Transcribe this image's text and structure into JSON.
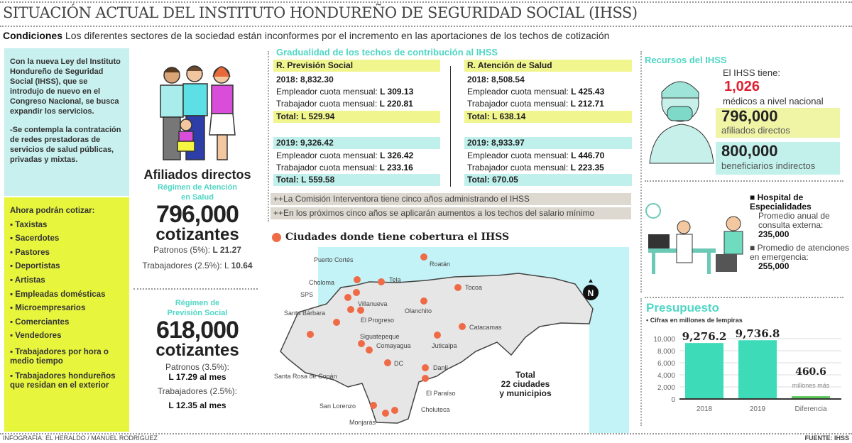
{
  "header": {
    "title": "SITUACIÓN ACTUAL DEL INSTITUTO HONDUREÑO DE SEGURIDAD SOCIAL (IHSS)",
    "cond_label": "Condiciones",
    "cond_text": " Los diferentes sectores de la sociedad están inconformes por el incremento en las aportaciones de los techos de cotización"
  },
  "intro": {
    "p1": "Con la nueva Ley del Instituto Hondureño de Seguridad Social (IHSS), que se introdujo de nuevo en el Congreso Nacional, se busca expandir los servicios.",
    "p2": "-Se contempla la contratación de redes prestadoras de servicios de salud públicas, privadas y mixtas."
  },
  "list": {
    "title": "Ahora podrán cotizar:",
    "items": [
      "Taxistas",
      "Sacerdotes",
      "Pastores",
      "Deportistas",
      "Artistas",
      "Empleadas domésticas",
      "Microempresarios",
      "Comerciantes",
      "Vendedores",
      "Trabajadores por hora o medio tiempo",
      "Trabajadores hondureños que residan en el exterior"
    ]
  },
  "afiliados": {
    "title": "Afiliados directos",
    "salud": {
      "regimen": "Régimen de Atención en Salud",
      "count": "796,000",
      "unit": "cotizantes",
      "patronos_label": "Patronos (5%): ",
      "patronos": "L 21.27",
      "trab_label": "Trabajadores (2.5%): L ",
      "trab": "10.64"
    },
    "prevision": {
      "regimen": "Régimen de Previsión Social",
      "count": "618,000",
      "unit": "cotizantes",
      "patronos_label": "Patronos (3.5%):",
      "patronos": "L 17.29 al mes",
      "trab_label": "Trabajadores (2.5%):",
      "trab": "L 12.35 al mes"
    }
  },
  "techos": {
    "title": "Gradualidad de los techos de contribución al IHSS",
    "cols": [
      {
        "name": "R. Previsión Social",
        "y2018": "2018: 8,832.30",
        "e18_l": "Empleador cuota mensual: ",
        "e18": "L 309.13",
        "t18_l": "Trabajador cuota mensual: ",
        "t18": "L 220.81",
        "tot18": "Total: L 529.94",
        "y2019": "2019: 9,326.42",
        "e19_l": "Empleador cuota mensual: ",
        "e19": "L 326.42",
        "t19_l": "Trabajador cuota mensual: ",
        "t19": "L 233.16",
        "tot19": "Total: L 559.58"
      },
      {
        "name": "R. Atención de Salud",
        "y2018": "2018: 8,508.54",
        "e18_l": "Empleador cuota mensual: ",
        "e18": "L 425.43",
        "t18_l": "Trabajador cuota mensual: ",
        "t18": "L 212.71",
        "tot18": "Total: L 638.14",
        "y2019": "2019: 8,933.97",
        "e19_l": "Empleador cuota mensual: ",
        "e19": "L 446.70",
        "t19_l": "Trabajador cuota mensual: ",
        "t19": "L 223.35",
        "tot19": "Total: 670.05"
      }
    ],
    "notes": [
      "++La Comisión Interventora tiene cinco años administrando el IHSS",
      "++En los próximos cinco años se aplicarán aumentos a los techos del salario mínimo"
    ]
  },
  "map": {
    "title": "Ciudades donde tiene cobertura el IHSS",
    "total": [
      "Total",
      "22 ciudades",
      "y municipios"
    ],
    "north": "N",
    "cities": [
      "Roatán",
      "Puerto Cortés",
      "Tela",
      "Tocoa",
      "Choloma",
      "SPS",
      "Olanchito",
      "Villanueva",
      "El Progreso",
      "Santa Bárbara",
      "Catacamas",
      "Santa Rosa de Copán",
      "Juticalpa",
      "Siguatepeque",
      "Comayagua",
      "DC",
      "Danlí",
      "El Paraíso",
      "San Lorenzo",
      "Choluteca",
      "Monjarás"
    ]
  },
  "recursos": {
    "title": "Recursos del IHSS",
    "tiene": "El IHSS tiene:",
    "medicos": "1,026",
    "medicos_l": "médicos a nivel nacional",
    "afil": "796,000",
    "afil_l": "afiliados directos",
    "benef": "800,000",
    "benef_l": "beneficiarios indirectos",
    "hosp_title": "Hospital de Especialidades",
    "hosp_l": "Promedio anual de consulta externa:",
    "hosp": "235,000",
    "emer_l": "Promedio de atenciones en emergencia:",
    "emer": "255,000"
  },
  "chart_data": {
    "type": "bar",
    "title": "Presupuesto",
    "subtitle": "Cifras en millones de lempiras",
    "categories": [
      "2018",
      "2019",
      "Diferencia"
    ],
    "values": [
      9276.2,
      9736.8,
      460.6
    ],
    "value_labels": [
      "9,276.2",
      "9,736.8",
      "460.6"
    ],
    "annotation": "millones más",
    "yticks": [
      "0",
      "2,000",
      "4,000",
      "6,000",
      "8,000",
      "10,000"
    ],
    "ylim": [
      0,
      10000
    ],
    "grid": true,
    "colors": [
      "#3ddbb8",
      "#3ddbb8",
      "#5cc85a"
    ]
  },
  "footer": {
    "credit": "INFOGRAFÍA: EL HERALDO / MANUEL RODRÍGUEZ",
    "source": "FUENTE: IHSS"
  }
}
